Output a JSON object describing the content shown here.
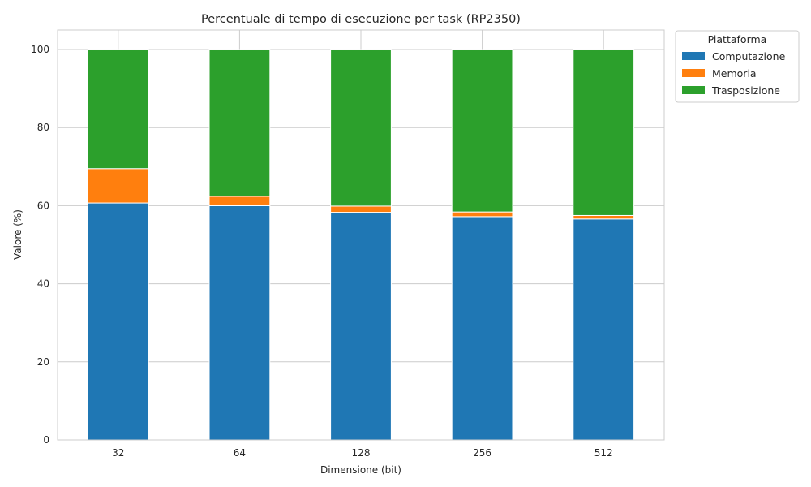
{
  "chart_data": {
    "type": "bar",
    "stacked": true,
    "title": "Percentuale di tempo di esecuzione per task (RP2350)",
    "xlabel": "Dimensione (bit)",
    "ylabel": "Valore (%)",
    "categories": [
      "32",
      "64",
      "128",
      "256",
      "512"
    ],
    "ylim": [
      0,
      105
    ],
    "yticks": [
      0,
      20,
      40,
      60,
      80,
      100
    ],
    "grid": true,
    "legend": {
      "title": "Piattaforma",
      "placement": "outside-top-right"
    },
    "series": [
      {
        "name": "Computazione",
        "color": "#1f77b4",
        "values": [
          60.7,
          60.0,
          58.3,
          57.2,
          56.6
        ]
      },
      {
        "name": "Memoria",
        "color": "#ff7f0e",
        "values": [
          8.8,
          2.4,
          1.6,
          1.2,
          0.9
        ]
      },
      {
        "name": "Trasposizione",
        "color": "#2ca02c",
        "values": [
          30.5,
          37.6,
          40.1,
          41.6,
          42.5
        ]
      }
    ]
  }
}
